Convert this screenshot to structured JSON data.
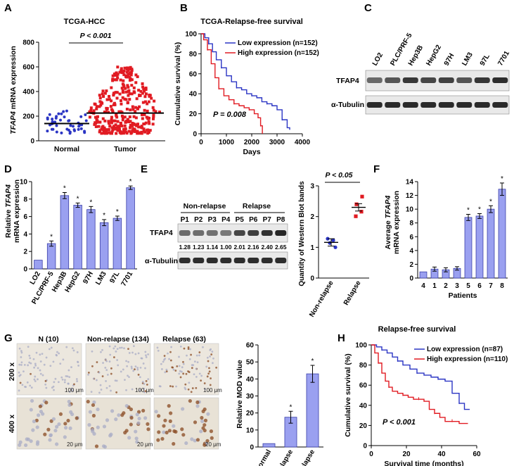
{
  "panels": {
    "A": {
      "letter": "A",
      "title": "TCGA-HCC",
      "pvalue": "P < 0.001",
      "ylabel_pre": "",
      "ylabel_gene": "TFAP4",
      "ylabel_post": " mRNA expression"
    },
    "B": {
      "letter": "B",
      "title": "TCGA-Relapse-free survival",
      "pvalue": "P = 0.008",
      "legend_low": "Low expression (n=152)",
      "legend_high": "High expression (n=152)"
    },
    "C": {
      "letter": "C",
      "lanes": [
        "LO2",
        "PLC/PRF-5",
        "Hep3B",
        "HepG2",
        "97H",
        "LM3",
        "97L",
        "7701"
      ],
      "row1": "TFAP4",
      "row2": "α-Tubulin"
    },
    "D": {
      "letter": "D",
      "ylabel_pre": "Relative ",
      "ylabel_gene": "TFAP4",
      "ylabel_post": "mRNA expression"
    },
    "E": {
      "letter": "E",
      "group1": "Non-relapse",
      "group2": "Relapse",
      "patients": [
        "P1",
        "P2",
        "P3",
        "P4",
        "P5",
        "P6",
        "P7",
        "P8"
      ],
      "quant": [
        "1.28",
        "1.23",
        "1.14",
        "1.00",
        "2.01",
        "2.16",
        "2.40",
        "2.65"
      ],
      "row1": "TFAP4",
      "row2": "α-Tubulin",
      "pvalue": "P < 0.05",
      "ylabel": "Quantity of Western Blot bands"
    },
    "F": {
      "letter": "F",
      "ylabel_pre": "Average ",
      "ylabel_gene": "TFAP4",
      "ylabel_post": "mRNA expression"
    },
    "G": {
      "letter": "G",
      "col_labels": [
        "N (10)",
        "Non-relapse (134)",
        "Relapse (63)"
      ],
      "row_labels": [
        "200 x",
        "400 x"
      ],
      "scale_200": "100 μm",
      "scale_400": "20 μm",
      "bar_ylabel": "Relative MOD value"
    },
    "H": {
      "letter": "H",
      "title": "Relapse-free survival",
      "pvalue": "P < 0.001",
      "legend_low": "Low expression (n=87)",
      "legend_high": "High expression (n=110)"
    }
  },
  "colors": {
    "blue": "#2b35c4",
    "red": "#e11b22",
    "bar": "#9aa0f0",
    "bar_edge": "#3a3fa8"
  },
  "chart_data": [
    {
      "id": "A",
      "type": "scatter",
      "title": "TCGA-HCC",
      "categories": [
        "Normal",
        "Tumor"
      ],
      "means": [
        140,
        225
      ],
      "ylim": [
        0,
        800
      ],
      "yticks": [
        0,
        200,
        400,
        600,
        800
      ],
      "ylabel": "TFAP4 mRNA expression",
      "xlabel": ""
    },
    {
      "id": "B",
      "type": "line",
      "title": "TCGA-Relapse-free survival",
      "xlabel": "Days",
      "ylabel": "Cumulative survival (%)",
      "xlim": [
        0,
        4000
      ],
      "ylim": [
        0,
        100
      ],
      "xticks": [
        0,
        1000,
        2000,
        3000,
        4000
      ],
      "yticks": [
        0,
        20,
        40,
        60,
        80,
        100
      ],
      "series": [
        {
          "name": "Low expression (n=152)",
          "x": [
            0,
            150,
            300,
            450,
            600,
            800,
            1000,
            1200,
            1400,
            1600,
            1800,
            2000,
            2200,
            2400,
            2600,
            2800,
            3000,
            3200,
            3400,
            3500
          ],
          "y": [
            100,
            96,
            90,
            82,
            74,
            66,
            58,
            52,
            46,
            44,
            40,
            38,
            36,
            32,
            30,
            28,
            24,
            14,
            6,
            4
          ]
        },
        {
          "name": "High expression (n=152)",
          "x": [
            0,
            100,
            250,
            400,
            550,
            700,
            900,
            1100,
            1300,
            1500,
            1700,
            1900,
            2100,
            2250,
            2350,
            2420
          ],
          "y": [
            100,
            94,
            84,
            70,
            56,
            45,
            38,
            34,
            30,
            28,
            26,
            24,
            20,
            16,
            8,
            0
          ]
        }
      ]
    },
    {
      "id": "D",
      "type": "bar",
      "categories": [
        "LO2",
        "PLC/PRF-5",
        "Hep3B",
        "HepG2",
        "97H",
        "LM3",
        "97L",
        "7701"
      ],
      "values": [
        1.0,
        2.9,
        8.4,
        7.3,
        6.8,
        5.3,
        5.8,
        9.3
      ],
      "errors": [
        0,
        0.3,
        0.35,
        0.25,
        0.35,
        0.35,
        0.25,
        0.2
      ],
      "significant": [
        false,
        true,
        true,
        true,
        true,
        true,
        true,
        true
      ],
      "ylim": [
        0,
        10
      ],
      "yticks": [
        0,
        2,
        4,
        6,
        8,
        10
      ],
      "ylabel": "Relative TFAP4 mRNA expression"
    },
    {
      "id": "E",
      "type": "scatter",
      "categories": [
        "Non-relapse",
        "Relapse"
      ],
      "points": [
        [
          1.28,
          1.23,
          1.14,
          1.0
        ],
        [
          2.01,
          2.16,
          2.4,
          2.65
        ]
      ],
      "means": [
        1.16,
        2.3
      ],
      "ylim": [
        0,
        3
      ],
      "yticks": [
        0,
        1,
        2,
        3
      ],
      "ylabel": "Quantity of Western Blot bands"
    },
    {
      "id": "F",
      "type": "bar",
      "categories": [
        "4",
        "1",
        "2",
        "3",
        "5",
        "6",
        "7",
        "8"
      ],
      "values": [
        0.9,
        1.3,
        1.2,
        1.4,
        8.8,
        9.0,
        10.0,
        12.9
      ],
      "errors": [
        0,
        0.3,
        0.3,
        0.25,
        0.45,
        0.35,
        0.5,
        0.9
      ],
      "significant": [
        false,
        false,
        false,
        false,
        true,
        true,
        true,
        true
      ],
      "ylim": [
        0,
        14
      ],
      "yticks": [
        0,
        2,
        4,
        6,
        8,
        10,
        12,
        14
      ],
      "xlabel": "Patients",
      "ylabel": "Average TFAP4 mRNA expression"
    },
    {
      "id": "G",
      "type": "bar",
      "categories": [
        "Normal",
        "Non-relapse",
        "Relapse"
      ],
      "values": [
        2,
        17.5,
        43
      ],
      "errors": [
        0,
        3.5,
        5
      ],
      "significant": [
        false,
        true,
        true
      ],
      "ylim": [
        0,
        60
      ],
      "yticks": [
        0,
        10,
        20,
        30,
        40,
        50,
        60
      ],
      "ylabel": "Relative MOD value"
    },
    {
      "id": "H",
      "type": "line",
      "title": "Relapse-free survival",
      "xlabel": "Survival time (months)",
      "ylabel": "Cumulative survival (%)",
      "xlim": [
        0,
        60
      ],
      "ylim": [
        0,
        100
      ],
      "xticks": [
        0,
        20,
        40,
        60
      ],
      "yticks": [
        0,
        20,
        40,
        60,
        80,
        100
      ],
      "series": [
        {
          "name": "Low expression (n=87)",
          "x": [
            0,
            3,
            6,
            9,
            12,
            15,
            18,
            22,
            26,
            30,
            34,
            38,
            42,
            46,
            50,
            53,
            56
          ],
          "y": [
            100,
            98,
            95,
            92,
            88,
            84,
            80,
            76,
            72,
            70,
            68,
            66,
            64,
            52,
            42,
            36,
            36
          ]
        },
        {
          "name": "High expression (n=110)",
          "x": [
            0,
            2,
            4,
            6,
            8,
            10,
            12,
            15,
            18,
            21,
            24,
            27,
            30,
            33,
            36,
            39,
            42,
            46,
            50,
            55
          ],
          "y": [
            100,
            92,
            82,
            72,
            64,
            58,
            54,
            52,
            50,
            48,
            46,
            46,
            44,
            36,
            32,
            28,
            24,
            24,
            22,
            22
          ]
        }
      ]
    }
  ]
}
